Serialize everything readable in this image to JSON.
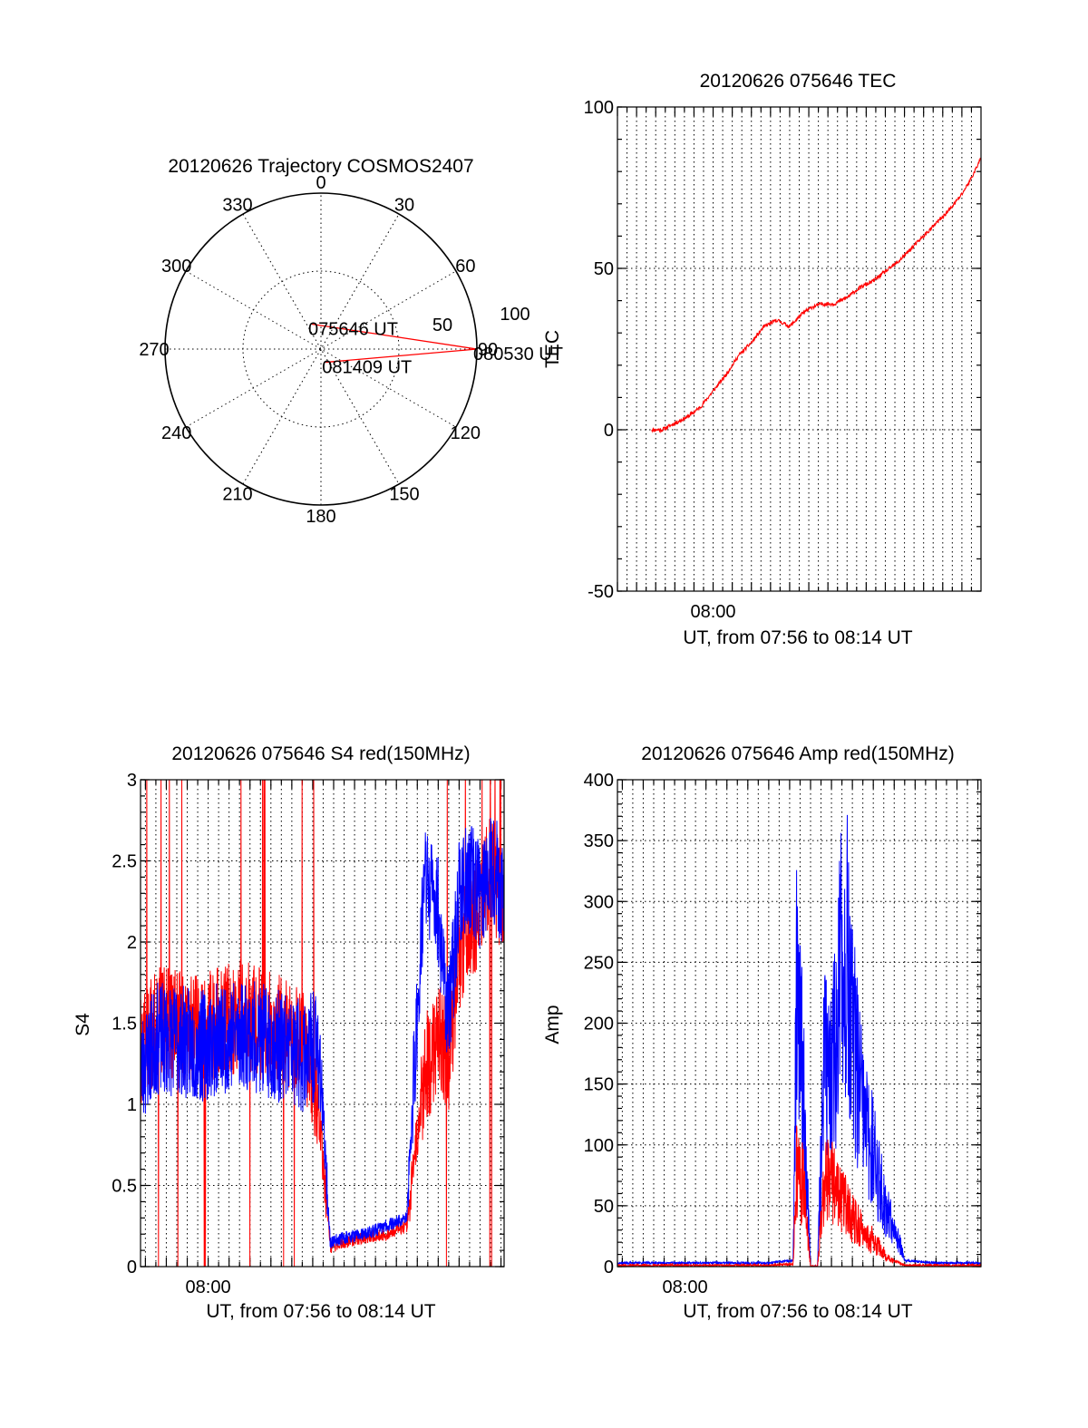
{
  "colors": {
    "series_red": "#ff0000",
    "series_blue": "#0000ff",
    "axes": "#000000",
    "background": "#ffffff"
  },
  "chart_data": [
    {
      "id": "trajectory",
      "type": "polar",
      "title": "20120626 Trajectory COSMOS2407",
      "azimuth_labels": [
        "0",
        "30",
        "60",
        "90",
        "120",
        "150",
        "180",
        "210",
        "240",
        "270",
        "300",
        "330"
      ],
      "radial_labels": [
        "50",
        "100"
      ],
      "rlim": [
        0,
        100
      ],
      "grid": true,
      "track": {
        "points": [
          {
            "az_deg": 340,
            "r": 83,
            "label": "075646 UT"
          },
          {
            "az_deg": 90,
            "r": 0,
            "label": "080530 UT"
          },
          {
            "az_deg": 160,
            "r": 91,
            "label": "081409 UT"
          }
        ],
        "color": "#ff0000"
      }
    },
    {
      "id": "tec",
      "type": "line",
      "title": "20120626 075646 TEC",
      "xlabel": "UT, from 07:56 to 08:14 UT",
      "ylabel": "TEC",
      "xlim": [
        "07:55",
        "08:14"
      ],
      "ylim": [
        -50,
        100
      ],
      "y_ticks": [
        "-50",
        "0",
        "50",
        "100"
      ],
      "x_ticks": [
        {
          "t": "08:00",
          "label": "08:00"
        }
      ],
      "grid": true,
      "series": [
        {
          "color": "#ff0000",
          "x": [
            "07:56:46",
            "07:57:20",
            "07:58:00",
            "07:58:40",
            "07:59:20",
            "08:00:00",
            "08:00:40",
            "08:01:20",
            "08:02:00",
            "08:02:40",
            "08:03:20",
            "08:04:00",
            "08:04:40",
            "08:05:10",
            "08:05:40",
            "08:06:20",
            "08:07:00",
            "08:07:40",
            "08:08:20",
            "08:09:00",
            "08:09:40",
            "08:10:20",
            "08:11:00",
            "08:11:40",
            "08:12:20",
            "08:13:00",
            "08:13:30",
            "08:14:09"
          ],
          "values": [
            0,
            0,
            2,
            4,
            7,
            12,
            17,
            23,
            27,
            32,
            34,
            32,
            36,
            38,
            39,
            39,
            41,
            44,
            46,
            49,
            52,
            56,
            60,
            64,
            68,
            73,
            78,
            86
          ]
        }
      ]
    },
    {
      "id": "s4",
      "type": "line",
      "title": "20120626 075646 S4 red(150MHz)",
      "xlabel": "UT, from 07:56 to 08:14 UT",
      "ylabel": "S4",
      "xlim": [
        "07:56:46",
        "08:14:09"
      ],
      "ylim": [
        0,
        3
      ],
      "y_ticks": [
        "0",
        "0.5",
        "1",
        "1.5",
        "2",
        "2.5",
        "3"
      ],
      "x_ticks": [
        {
          "t": "08:00",
          "label": "08:00"
        }
      ],
      "grid": true,
      "series": [
        {
          "color": "#0000ff",
          "x": [
            "07:56:46",
            "07:57:30",
            "07:58:30",
            "07:59:30",
            "08:00:30",
            "08:01:30",
            "08:02:30",
            "08:03:30",
            "08:04:30",
            "08:05:00",
            "08:05:20",
            "08:05:50",
            "08:06:30",
            "08:07:30",
            "08:08:30",
            "08:09:30",
            "08:10:20",
            "08:11:00",
            "08:11:30",
            "08:12:00",
            "08:12:30",
            "08:13:00",
            "08:13:30",
            "08:14:09"
          ],
          "values": [
            1.2,
            1.4,
            1.4,
            1.35,
            1.4,
            1.45,
            1.4,
            1.35,
            1.3,
            1.35,
            1.3,
            0.15,
            0.18,
            0.2,
            0.25,
            0.3,
            2.4,
            2.2,
            1.5,
            2.3,
            2.4,
            2.3,
            2.5,
            2.3
          ]
        },
        {
          "color": "#ff0000",
          "x": [
            "07:56:46",
            "07:57:30",
            "07:58:30",
            "07:59:30",
            "08:00:30",
            "08:01:30",
            "08:02:30",
            "08:03:30",
            "08:04:30",
            "08:05:00",
            "08:05:20",
            "08:05:50",
            "08:06:30",
            "08:07:30",
            "08:08:30",
            "08:09:30",
            "08:10:20",
            "08:11:00",
            "08:11:30",
            "08:12:00",
            "08:12:30",
            "08:13:00",
            "08:13:30",
            "08:14:09"
          ],
          "values": [
            1.3,
            1.5,
            1.5,
            1.45,
            1.5,
            1.55,
            1.5,
            1.45,
            1.4,
            1.2,
            0.9,
            0.12,
            0.15,
            0.18,
            0.2,
            0.25,
            1.2,
            1.4,
            1.3,
            1.9,
            2.1,
            2.2,
            2.5,
            2.2
          ]
        }
      ]
    },
    {
      "id": "amp",
      "type": "line",
      "title": "20120626 075646 Amp red(150MHz)",
      "xlabel": "UT, from 07:56 to 08:14 UT",
      "ylabel": "Amp",
      "xlim": [
        "07:56:46",
        "08:14:09"
      ],
      "ylim": [
        0,
        400
      ],
      "y_ticks": [
        "0",
        "50",
        "100",
        "150",
        "200",
        "250",
        "300",
        "350",
        "400"
      ],
      "x_ticks": [
        {
          "t": "08:00",
          "label": "08:00"
        }
      ],
      "grid": true,
      "series": [
        {
          "color": "#0000ff",
          "x": [
            "07:56:46",
            "08:00:00",
            "08:04:00",
            "08:05:10",
            "08:05:20",
            "08:05:40",
            "08:06:00",
            "08:06:20",
            "08:06:40",
            "08:07:00",
            "08:07:20",
            "08:07:40",
            "08:08:00",
            "08:08:20",
            "08:08:40",
            "08:09:00",
            "08:09:20",
            "08:09:40",
            "08:10:00",
            "08:10:30",
            "08:12:00",
            "08:14:09"
          ],
          "values": [
            3,
            3,
            3,
            5,
            300,
            200,
            0,
            0,
            240,
            200,
            300,
            370,
            260,
            200,
            150,
            130,
            90,
            60,
            50,
            5,
            3,
            3
          ]
        },
        {
          "color": "#ff0000",
          "x": [
            "07:56:46",
            "08:00:00",
            "08:04:00",
            "08:05:10",
            "08:05:20",
            "08:05:40",
            "08:06:00",
            "08:06:20",
            "08:06:40",
            "08:07:00",
            "08:07:20",
            "08:07:40",
            "08:08:00",
            "08:08:20",
            "08:08:40",
            "08:09:00",
            "08:09:20",
            "08:09:40",
            "08:10:00",
            "08:10:30",
            "08:12:00",
            "08:14:09"
          ],
          "values": [
            1,
            1,
            1,
            2,
            110,
            90,
            0,
            0,
            100,
            95,
            80,
            70,
            55,
            45,
            35,
            30,
            20,
            10,
            5,
            1,
            1,
            1
          ]
        }
      ]
    }
  ]
}
